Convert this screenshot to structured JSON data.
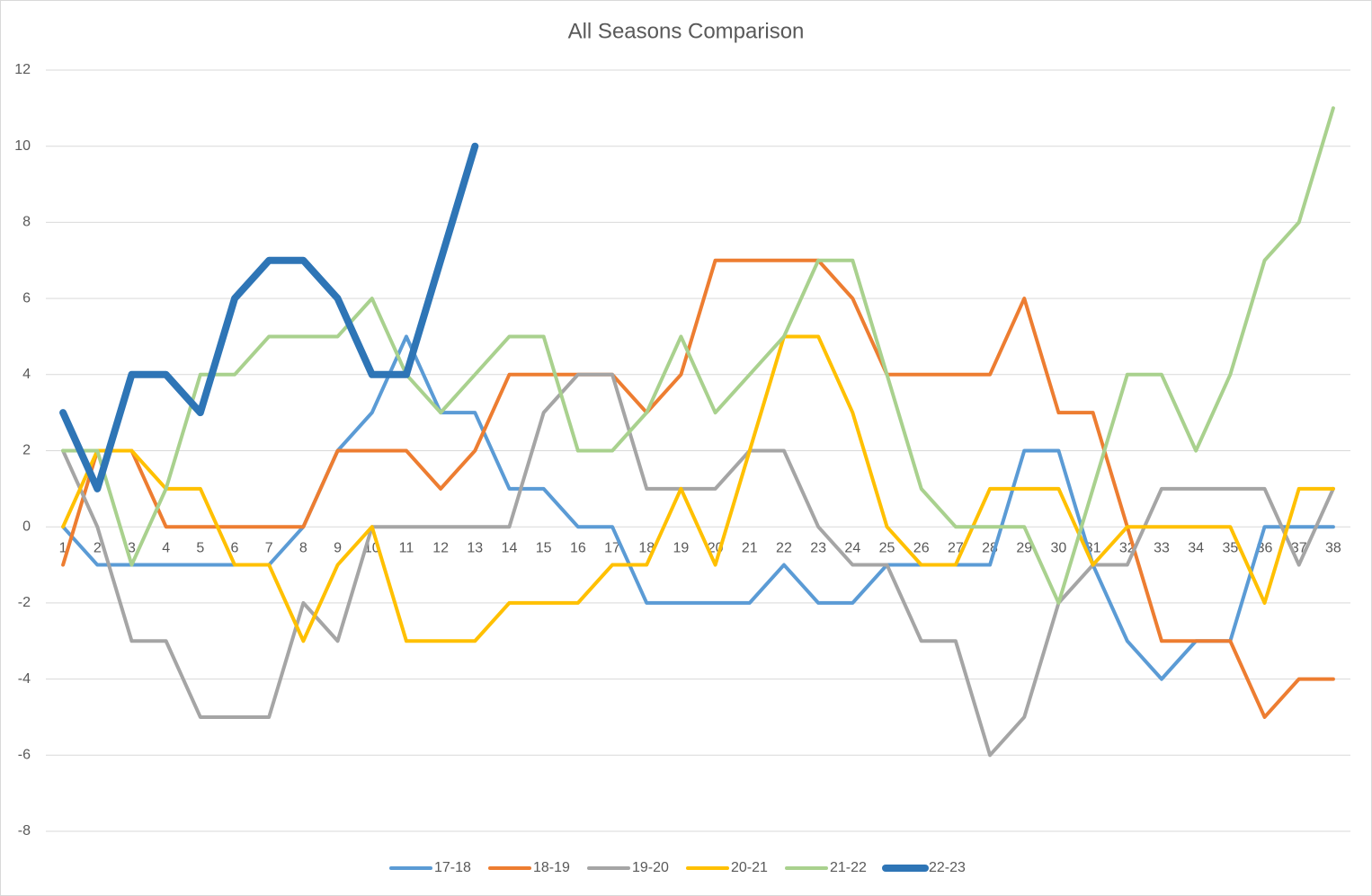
{
  "chart_data": {
    "type": "line",
    "title": "All Seasons Comparison",
    "categories": [
      1,
      2,
      3,
      4,
      5,
      6,
      7,
      8,
      9,
      10,
      11,
      12,
      13,
      14,
      15,
      16,
      17,
      18,
      19,
      20,
      21,
      22,
      23,
      24,
      25,
      26,
      27,
      28,
      29,
      30,
      31,
      32,
      33,
      34,
      35,
      36,
      37,
      38
    ],
    "ylim": [
      -8,
      12
    ],
    "yticks": [
      -8,
      -6,
      -4,
      -2,
      0,
      2,
      4,
      6,
      8,
      10,
      12
    ],
    "grid": true,
    "legend": "bottom",
    "series": [
      {
        "name": "17-18",
        "color": "#5b9bd5",
        "width": 4,
        "values": [
          0,
          -1,
          -1,
          -1,
          -1,
          -1,
          -1,
          0,
          2,
          3,
          5,
          3,
          3,
          1,
          1,
          0,
          0,
          -2,
          -2,
          -2,
          -2,
          -1,
          -2,
          -2,
          -1,
          -1,
          -1,
          -1,
          2,
          2,
          -1,
          -3,
          -4,
          -3,
          -3,
          0,
          0,
          0
        ]
      },
      {
        "name": "18-19",
        "color": "#ed7d31",
        "width": 4,
        "values": [
          -1,
          2,
          2,
          0,
          0,
          0,
          0,
          0,
          2,
          2,
          2,
          1,
          2,
          4,
          4,
          4,
          4,
          3,
          4,
          7,
          7,
          7,
          7,
          6,
          4,
          4,
          4,
          4,
          6,
          3,
          3,
          0,
          -3,
          -3,
          -3,
          -5,
          -4,
          -4
        ]
      },
      {
        "name": "19-20",
        "color": "#a5a5a5",
        "width": 4,
        "values": [
          2,
          0,
          -3,
          -3,
          -5,
          -5,
          -5,
          -2,
          -3,
          0,
          0,
          0,
          0,
          0,
          3,
          4,
          4,
          1,
          1,
          1,
          2,
          2,
          0,
          -1,
          -1,
          -3,
          -3,
          -6,
          -5,
          -2,
          -1,
          -1,
          1,
          1,
          1,
          1,
          -1,
          1
        ]
      },
      {
        "name": "20-21",
        "color": "#ffc000",
        "width": 4,
        "values": [
          0,
          2,
          2,
          1,
          1,
          -1,
          -1,
          -3,
          -1,
          0,
          -3,
          -3,
          -3,
          -2,
          -2,
          -2,
          -1,
          -1,
          1,
          -1,
          2,
          5,
          5,
          3,
          0,
          -1,
          -1,
          1,
          1,
          1,
          -1,
          0,
          0,
          0,
          0,
          -2,
          1,
          1
        ]
      },
      {
        "name": "21-22",
        "color": "#a9d18e",
        "width": 4,
        "values": [
          2,
          2,
          -1,
          1,
          4,
          4,
          5,
          5,
          5,
          6,
          4,
          3,
          4,
          5,
          5,
          2,
          2,
          3,
          5,
          3,
          4,
          5,
          7,
          7,
          4,
          1,
          0,
          0,
          0,
          -2,
          1,
          4,
          4,
          2,
          4,
          7,
          8,
          11
        ]
      },
      {
        "name": "22-23",
        "color": "#2e75b6",
        "width": 8,
        "values": [
          3,
          1,
          4,
          4,
          3,
          6,
          7,
          7,
          6,
          4,
          4,
          7,
          10,
          null,
          null,
          null,
          null,
          null,
          null,
          null,
          null,
          null,
          null,
          null,
          null,
          null,
          null,
          null,
          null,
          null,
          null,
          null,
          null,
          null,
          null,
          null,
          null,
          null
        ]
      }
    ]
  }
}
